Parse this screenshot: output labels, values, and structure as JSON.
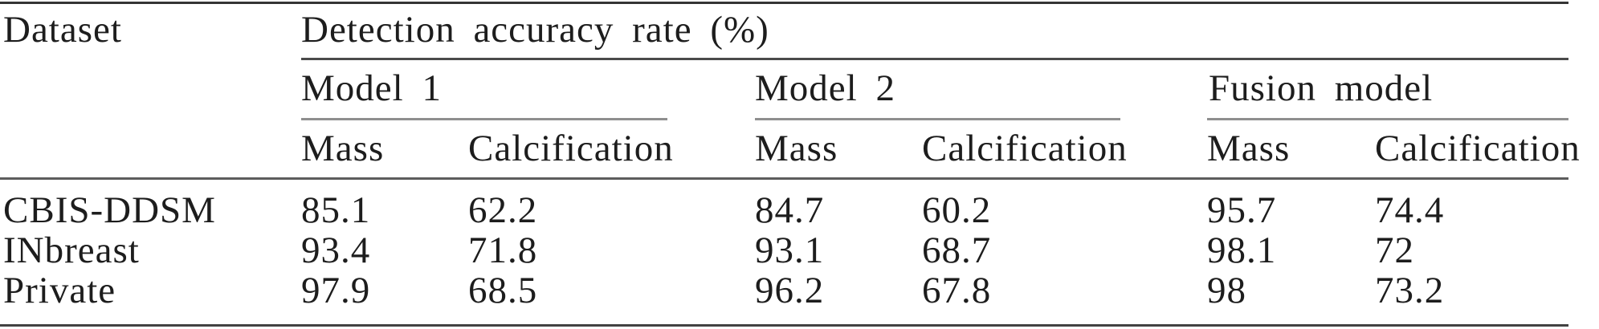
{
  "table": {
    "dataset_header": "Dataset",
    "span_header": "Detection accuracy rate (%)",
    "groups": [
      {
        "label": "Model 1",
        "subcolumns": [
          "Mass",
          "Calcification"
        ]
      },
      {
        "label": "Model 2",
        "subcolumns": [
          "Mass",
          "Calcification"
        ]
      },
      {
        "label": "Fusion model",
        "subcolumns": [
          "Mass",
          "Calcification"
        ]
      }
    ],
    "rows": [
      {
        "dataset": "CBIS-DDSM",
        "values": [
          "85.1",
          "62.2",
          "84.7",
          "60.2",
          "95.7",
          "74.4"
        ]
      },
      {
        "dataset": "INbreast",
        "values": [
          "93.4",
          "71.8",
          "93.1",
          "68.7",
          "98.1",
          "72"
        ]
      },
      {
        "dataset": "Private",
        "values": [
          "97.9",
          "68.5",
          "96.2",
          "67.8",
          "98",
          "73.2"
        ]
      }
    ]
  },
  "colors": {
    "background": "#ffffff",
    "text": "#1d1d1d",
    "outer_rule": "#343434",
    "group_rule": "#8f8f8f"
  },
  "chart_data": {
    "type": "table",
    "title": "Detection accuracy rate (%)",
    "columns": [
      "Dataset",
      "Model 1 Mass",
      "Model 1 Calcification",
      "Model 2 Mass",
      "Model 2 Calcification",
      "Fusion model Mass",
      "Fusion model Calcification"
    ],
    "rows": [
      [
        "CBIS-DDSM",
        85.1,
        62.2,
        84.7,
        60.2,
        95.7,
        74.4
      ],
      [
        "INbreast",
        93.4,
        71.8,
        93.1,
        68.7,
        98.1,
        72
      ],
      [
        "Private",
        97.9,
        68.5,
        96.2,
        67.8,
        98,
        73.2
      ]
    ]
  }
}
